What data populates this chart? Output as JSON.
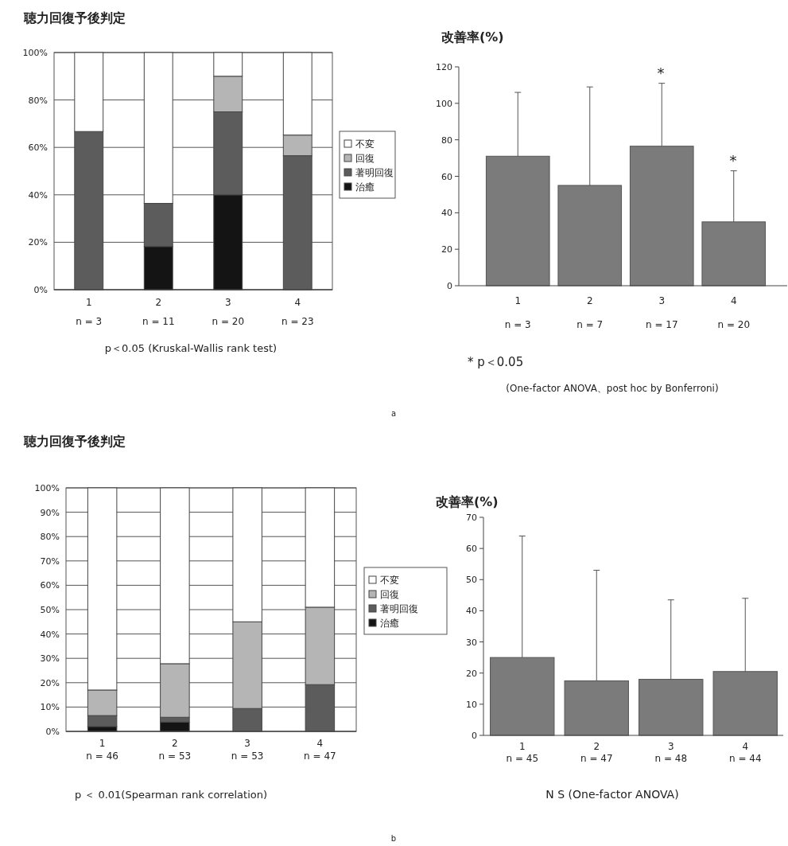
{
  "chart_data": [
    {
      "type": "bar",
      "title": "聴力回復予後判定",
      "stacked": true,
      "grid": "y",
      "legend": "right",
      "categories": [
        "1\nn = 3",
        "2\nn = 11",
        "3\nn = 20",
        "4\nn = 23"
      ],
      "series": [
        {
          "name": "治癒",
          "color": "#141414",
          "values": [
            0,
            18.2,
            40,
            0
          ]
        },
        {
          "name": "著明回復",
          "color": "#5c5c5c",
          "values": [
            66.7,
            18.2,
            35,
            56.5
          ]
        },
        {
          "name": "回復",
          "color": "#b5b5b5",
          "values": [
            0,
            0,
            15,
            8.7
          ]
        },
        {
          "name": "不変",
          "color": "#ffffff",
          "values": [
            33.3,
            63.6,
            10,
            34.8
          ]
        }
      ],
      "ylim": [
        0,
        100
      ],
      "yticks": [
        {
          "value": 0,
          "label": "0%"
        },
        {
          "value": 20,
          "label": "20%"
        },
        {
          "value": 40,
          "label": "40%"
        },
        {
          "value": 60,
          "label": "60%"
        },
        {
          "value": 80,
          "label": "80%"
        },
        {
          "value": 100,
          "label": "100%"
        }
      ],
      "annotations": [
        "p＜0.05 (Kruskal-Wallis rank test)"
      ]
    },
    {
      "type": "bar",
      "title": "改善率(%)",
      "color": "#7b7b7b",
      "categories": [
        "1\nn = 3",
        "2\nn = 7",
        "3\nn = 17",
        "4\nn = 20"
      ],
      "values": [
        71,
        55,
        76.5,
        35
      ],
      "errors": [
        [
          71,
          106
        ],
        [
          55,
          109
        ],
        [
          76.5,
          111
        ],
        [
          35,
          63
        ]
      ],
      "ylim": [
        0,
        120
      ],
      "yticks": [
        0,
        20,
        40,
        60,
        80,
        100,
        120
      ],
      "annotations": [
        "*",
        "*",
        "*  p＜0.05",
        "(One-factor ANOVA、post hoc by Bonferroni)",
        "a"
      ]
    },
    {
      "type": "bar",
      "title": "聴力回復予後判定",
      "stacked": true,
      "grid": "y",
      "legend": "right",
      "categories": [
        "1\nn = 46",
        "2\nn = 53",
        "3\nn = 53",
        "4\nn = 47"
      ],
      "series": [
        {
          "name": "治癒",
          "color": "#141414",
          "values": [
            2,
            3.8,
            0,
            0
          ]
        },
        {
          "name": "著明回復",
          "color": "#5c5c5c",
          "values": [
            4.5,
            2,
            9.4,
            19.2
          ]
        },
        {
          "name": "回復",
          "color": "#b5b5b5",
          "values": [
            10.5,
            22,
            35.6,
            31.8
          ]
        },
        {
          "name": "不変",
          "color": "#ffffff",
          "values": [
            83,
            72.2,
            55,
            49
          ]
        }
      ],
      "ylim": [
        0,
        100
      ],
      "yticks": [
        {
          "value": 0,
          "label": "0%"
        },
        {
          "value": 10,
          "label": "10%"
        },
        {
          "value": 20,
          "label": "20%"
        },
        {
          "value": 30,
          "label": "30%"
        },
        {
          "value": 40,
          "label": "40%"
        },
        {
          "value": 50,
          "label": "50%"
        },
        {
          "value": 60,
          "label": "60%"
        },
        {
          "value": 70,
          "label": "70%"
        },
        {
          "value": 80,
          "label": "80%"
        },
        {
          "value": 90,
          "label": "90%"
        },
        {
          "value": 100,
          "label": "100%"
        }
      ],
      "annotations": [
        "p ＜ 0.01(Spearman rank correlation)"
      ]
    },
    {
      "type": "bar",
      "title": "改善率(%)",
      "color": "#7b7b7b",
      "categories": [
        "1\nn = 45",
        "2\nn = 47",
        "3\nn = 48",
        "4\nn = 44"
      ],
      "values": [
        25,
        17.5,
        18,
        20.5
      ],
      "errors": [
        [
          25,
          64
        ],
        [
          17.5,
          53
        ],
        [
          18,
          43.5
        ],
        [
          20.5,
          44
        ]
      ],
      "ylim": [
        0,
        70
      ],
      "yticks": [
        0,
        10,
        20,
        30,
        40,
        50,
        60,
        70
      ],
      "annotations": [
        "N S (One-factor ANOVA)",
        "b"
      ]
    }
  ]
}
